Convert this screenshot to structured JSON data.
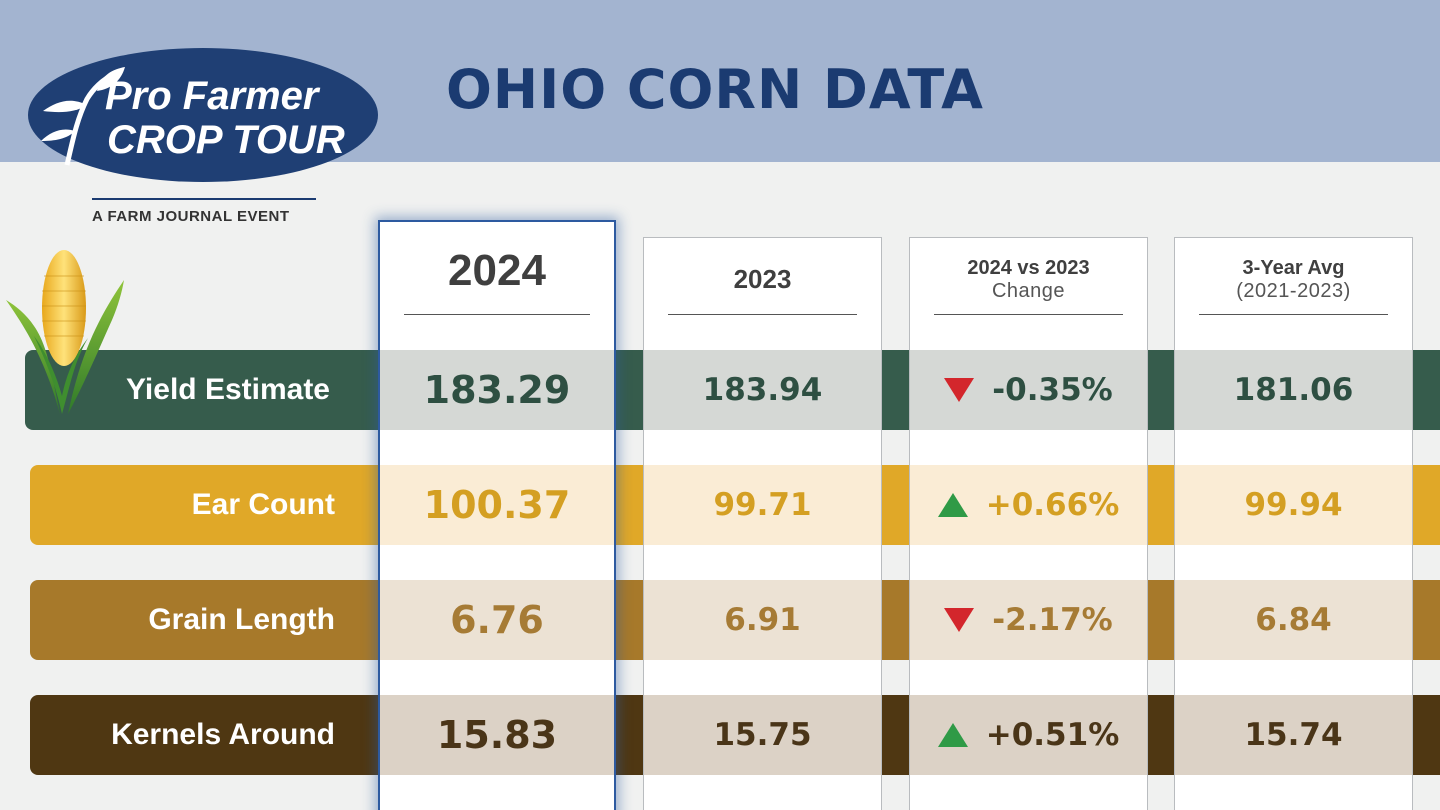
{
  "header": {
    "title": "OHIO CORN DATA",
    "logo_line1": "Pro Farmer",
    "logo_line2": "CROP TOUR",
    "tagline": "A FARM JOURNAL EVENT"
  },
  "columns": {
    "y2024": "2024",
    "y2023": "2023",
    "change_main": "2024 vs 2023",
    "change_sub": "Change",
    "avg_main": "3-Year Avg",
    "avg_sub": "(2021-2023)"
  },
  "rows": [
    {
      "label": "Yield Estimate",
      "v2024": "183.29",
      "v2023": "183.94",
      "change": "-0.35%",
      "direction": "down",
      "avg": "181.06"
    },
    {
      "label": "Ear Count",
      "v2024": "100.37",
      "v2023": "99.71",
      "change": "+0.66%",
      "direction": "up",
      "avg": "99.94"
    },
    {
      "label": "Grain Length",
      "v2024": "6.76",
      "v2023": "6.91",
      "change": "-2.17%",
      "direction": "down",
      "avg": "6.84"
    },
    {
      "label": "Kernels Around",
      "v2024": "15.83",
      "v2023": "15.75",
      "change": "+0.51%",
      "direction": "up",
      "avg": "15.74"
    }
  ],
  "colors": {
    "header_band": "#a3b4d0",
    "title": "#1b3b71",
    "yield": "#365c4c",
    "ear": "#e0a828",
    "grain": "#a7792a",
    "kernels": "#4f3712",
    "down": "#d3262c",
    "up": "#2f9a46"
  },
  "icons": [
    "pro-farmer-logo",
    "corn-cob-icon",
    "arrow-down-icon",
    "arrow-up-icon"
  ]
}
